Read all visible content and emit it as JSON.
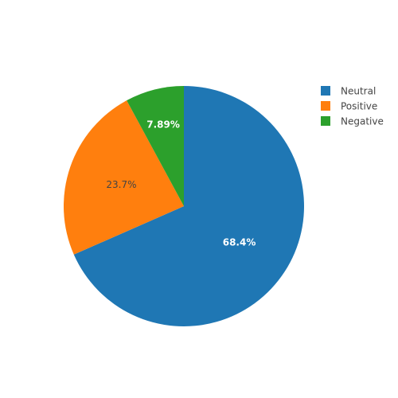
{
  "chart_data": {
    "type": "pie",
    "labels": [
      "Neutral",
      "Positive",
      "Negative"
    ],
    "values": [
      68.4,
      23.7,
      7.89
    ],
    "value_labels": [
      "68.4%",
      "23.7%",
      "7.89%"
    ],
    "colors": [
      "#1f77b4",
      "#ff7f0e",
      "#2ca02c"
    ],
    "label_text_colors": [
      "#ffffff",
      "#444444",
      "#ffffff"
    ],
    "direction": "clockwise",
    "start": "top",
    "legend_position": "top-right"
  }
}
